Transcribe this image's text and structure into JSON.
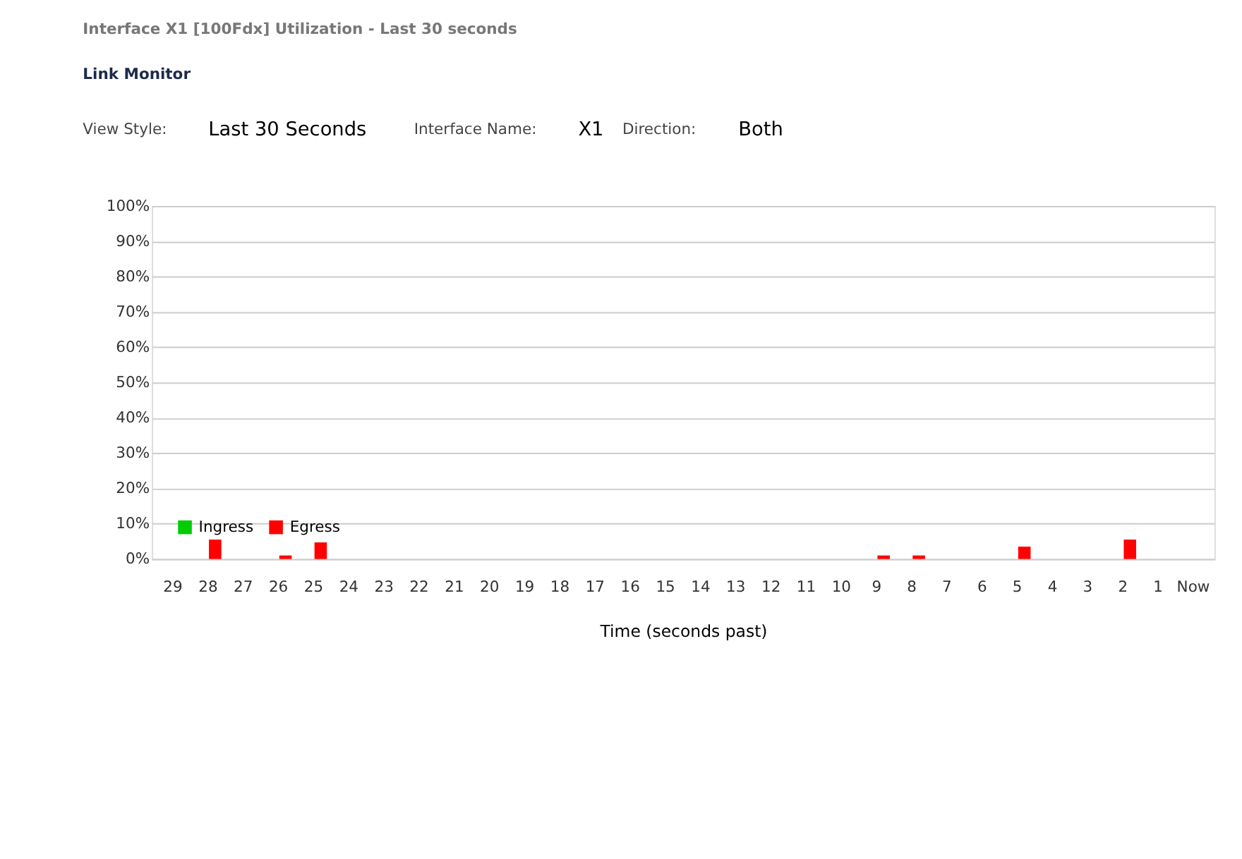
{
  "chart_data": {
    "type": "bar",
    "title": "Interface X1 [100Fdx] Utilization - Last 30 seconds",
    "annotations": [
      "Link Monitor",
      "View Style:",
      "Last 30 Seconds",
      "Interface Name:",
      "X1",
      "Direction:",
      "Both"
    ],
    "xlabel": "Time (seconds past)",
    "categories": [
      "29",
      "28",
      "27",
      "26",
      "25",
      "24",
      "23",
      "22",
      "21",
      "20",
      "19",
      "18",
      "17",
      "16",
      "15",
      "14",
      "13",
      "12",
      "11",
      "10",
      "9",
      "8",
      "7",
      "6",
      "5",
      "4",
      "3",
      "2",
      "1",
      "Now"
    ],
    "series": [
      {
        "name": "Ingress",
        "color": "#00cc00",
        "values": [
          0,
          0,
          0,
          0,
          0,
          0,
          0,
          0,
          0,
          0,
          0,
          0,
          0,
          0,
          0,
          0,
          0,
          0,
          0,
          0,
          0,
          0,
          0,
          0,
          0,
          0,
          0,
          0,
          0,
          0
        ]
      },
      {
        "name": "Egress",
        "color": "#ff0000",
        "values": [
          0,
          5.5,
          0,
          1,
          4.7,
          0,
          0,
          0,
          0,
          0,
          0,
          0,
          0,
          0,
          0,
          0,
          0,
          0,
          0,
          0,
          1,
          1,
          0,
          0,
          3.5,
          0,
          0,
          5.5,
          0,
          0
        ]
      }
    ],
    "ylim": [
      0,
      100
    ],
    "yticks": [
      {
        "value": 0,
        "label": "0%"
      },
      {
        "value": 10,
        "label": "10%"
      },
      {
        "value": 20,
        "label": "20%"
      },
      {
        "value": 30,
        "label": "30%"
      },
      {
        "value": 40,
        "label": "40%"
      },
      {
        "value": 50,
        "label": "50%"
      },
      {
        "value": 60,
        "label": "60%"
      },
      {
        "value": 70,
        "label": "70%"
      },
      {
        "value": 80,
        "label": "80%"
      },
      {
        "value": 90,
        "label": "90%"
      },
      {
        "value": 100,
        "label": "100%"
      }
    ],
    "grid": "y",
    "legend": "bottom left"
  }
}
